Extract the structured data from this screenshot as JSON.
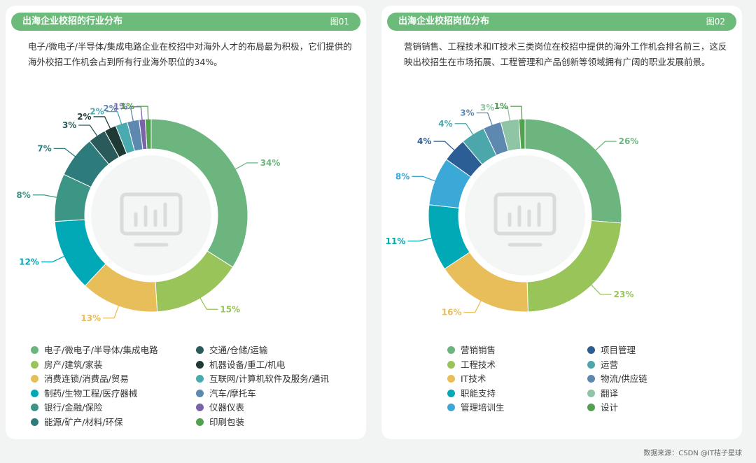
{
  "source_text": "数据来源：CSDN @IT桔子星球",
  "panels": [
    {
      "header": "出海企业校招的行业分布",
      "figure": "图01",
      "description": "电子/微电子/半导体/集成电路企业在校招中对海外人才的布局最为积极，它们提供的海外校招工作机会占到所有行业海外职位的34%。"
    },
    {
      "header": "出海企业校招岗位分布",
      "figure": "图02",
      "description": "营销销售、工程技术和IT技术三类岗位在校招中提供的海外工作机会排名前三，这反映出校招生在市场拓展、工程管理和产品创新等领域拥有广阔的职业发展前景。"
    }
  ],
  "chart_data": [
    {
      "type": "pie",
      "donut": true,
      "unit": "%",
      "categories": [
        "电子/微电子/半导体/集成电路",
        "房产/建筑/家装",
        "消费连锁/消费品/贸易",
        "制药/生物工程/医疗器械",
        "银行/金融/保险",
        "能源/矿产/材料/环保",
        "交通/仓储/运输",
        "机器设备/重工/机电",
        "互联网/计算机软件及服务/通讯",
        "汽车/摩托车",
        "仪器仪表",
        "印刷包装"
      ],
      "values": [
        34,
        15,
        13,
        12,
        8,
        7,
        3,
        2,
        2,
        2,
        1,
        1
      ],
      "labels": [
        "34%",
        "15%",
        "13%",
        "12%",
        "8%",
        "7%",
        "3%",
        "2%",
        "2%",
        "2%",
        "1%",
        "1%"
      ],
      "colors": [
        "#6db57f",
        "#98c45a",
        "#e8be5a",
        "#00a9b5",
        "#3c9585",
        "#2d7b7a",
        "#2b5a5a",
        "#1f3a35",
        "#49aab0",
        "#5d88b0",
        "#7a63a8",
        "#52a14f"
      ]
    },
    {
      "type": "pie",
      "donut": true,
      "unit": "%",
      "categories": [
        "营销销售",
        "工程技术",
        "IT技术",
        "职能支持",
        "管理培训生",
        "项目管理",
        "运营",
        "物流/供应链",
        "翻译",
        "设计"
      ],
      "values": [
        26,
        23,
        16,
        11,
        8,
        4,
        4,
        3,
        3,
        1
      ],
      "labels": [
        "26%",
        "23%",
        "16%",
        "11%",
        "8%",
        "4%",
        "4%",
        "3%",
        "3%",
        "1%"
      ],
      "colors": [
        "#6db57f",
        "#98c45a",
        "#e8be5a",
        "#00a9b5",
        "#3aa9d8",
        "#2c5e96",
        "#4ca7ab",
        "#5d88b0",
        "#8fc4a4",
        "#52a14f"
      ]
    }
  ]
}
